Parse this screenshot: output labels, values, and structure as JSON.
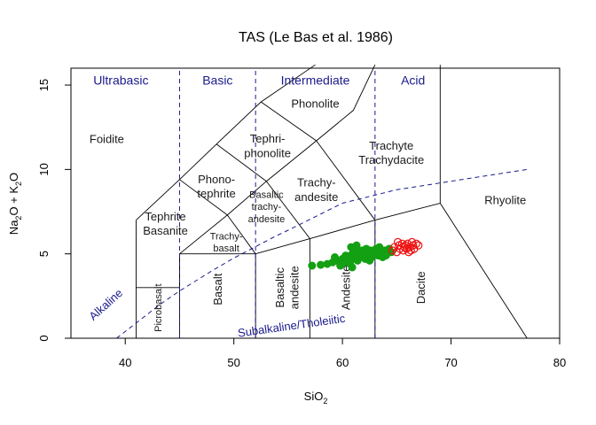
{
  "chart_data": {
    "type": "scatter",
    "title": "TAS (Le Bas et al. 1986)",
    "xlabel": "SiO",
    "xlabel_sub": "2",
    "ylabel": {
      "a": "Na",
      "a_sub": "2",
      "a_tail": "O + K",
      "b_sub": "2",
      "b_tail": "O"
    },
    "xlim": [
      35,
      80
    ],
    "ylim": [
      0,
      16
    ],
    "x_ticks": [
      40,
      50,
      60,
      70,
      80
    ],
    "y_ticks": [
      0,
      5,
      10,
      15
    ],
    "grid": false,
    "fields": [
      {
        "name": "Picrobasalt",
        "x": 43,
        "y": 1.8,
        "rotate": true
      },
      {
        "name": "Basalt",
        "x": 48.5,
        "y": 2.9,
        "rotate": true
      },
      {
        "name": "Basaltic andesite",
        "lines": [
          "Basaltic",
          "andesite"
        ],
        "x": 54.9,
        "y": 3.0,
        "rotate": true
      },
      {
        "name": "Andesite",
        "x": 60.3,
        "y": 3.0,
        "rotate": true
      },
      {
        "name": "Dacite",
        "x": 67.2,
        "y": 3.0,
        "rotate": true
      },
      {
        "name": "Rhyolite",
        "x": 75,
        "y": 8.2
      },
      {
        "name": "Foidite",
        "x": 38.3,
        "y": 11.8
      },
      {
        "name": "Tephrite Basanite",
        "lines": [
          "Tephrite",
          "Basanite"
        ],
        "x": 43.7,
        "y": 6.8
      },
      {
        "name": "Phono-tephrite",
        "lines": [
          "Phono-",
          "tephrite"
        ],
        "x": 48.4,
        "y": 9.0
      },
      {
        "name": "Tephri-phonolite",
        "lines": [
          "Tephri-",
          "phonolite"
        ],
        "x": 53.1,
        "y": 11.4
      },
      {
        "name": "Phonolite",
        "x": 57.5,
        "y": 13.9
      },
      {
        "name": "Trachy-basalt",
        "lines": [
          "Trachy-",
          "basalt"
        ],
        "x": 49.3,
        "y": 5.7,
        "small": true
      },
      {
        "name": "Basaltic trachy-andesite",
        "lines": [
          "Basaltic",
          "trachy-",
          "andesite"
        ],
        "x": 53.0,
        "y": 7.8,
        "small": true
      },
      {
        "name": "Trachy-andesite",
        "lines": [
          "Trachy-",
          "andesite"
        ],
        "x": 57.6,
        "y": 8.8
      },
      {
        "name": "Trachyte Trachydacite",
        "lines": [
          "Trachyte",
          "Trachydacite"
        ],
        "x": 64.5,
        "y": 11.0
      }
    ],
    "groups": [
      {
        "name": "Ultrabasic",
        "x": 39.6,
        "y": 15.3
      },
      {
        "name": "Basic",
        "x": 48.5,
        "y": 15.3
      },
      {
        "name": "Intermediate",
        "x": 57.5,
        "y": 15.3
      },
      {
        "name": "Acid",
        "x": 66.5,
        "y": 15.3
      }
    ],
    "series_labels": [
      {
        "name": "Alkaline",
        "x": 38.2,
        "y": 2.0,
        "angle": -42
      },
      {
        "name": "Subalkaline/Tholeiitic",
        "x": 55.3,
        "y": 0.75,
        "angle": -8
      }
    ],
    "series": [
      {
        "marker": "filled-circle",
        "color": "#13a013",
        "x": [
          57.2,
          58.0,
          58.6,
          59.1,
          59.5,
          59.8,
          60.0,
          60.2,
          60.3,
          60.5,
          60.6,
          60.7,
          60.9,
          61.0,
          61.1,
          61.2,
          61.4,
          61.5,
          61.6,
          61.8,
          61.9,
          62.0,
          62.1,
          62.3,
          62.4,
          62.6,
          62.7,
          62.9,
          63.1,
          63.3,
          63.5,
          63.7,
          63.9,
          64.1,
          64.3,
          64.5,
          60.8,
          61.3,
          62.2,
          63.0,
          59.3,
          60.9,
          62.5,
          63.4,
          64.0
        ],
        "y": [
          4.3,
          4.35,
          4.4,
          4.5,
          4.6,
          4.3,
          4.7,
          4.5,
          4.9,
          4.6,
          4.8,
          4.4,
          5.0,
          4.7,
          5.3,
          4.9,
          4.6,
          5.1,
          4.8,
          5.2,
          4.9,
          5.0,
          4.7,
          5.1,
          4.9,
          5.2,
          4.8,
          5.0,
          5.3,
          4.9,
          5.1,
          4.8,
          5.2,
          5.0,
          5.3,
          5.1,
          5.4,
          5.5,
          5.3,
          5.0,
          4.8,
          4.2,
          4.6,
          5.4,
          4.9
        ]
      },
      {
        "marker": "open-circle",
        "color": "#ee1111",
        "x": [
          64.6,
          64.8,
          65.0,
          65.2,
          65.3,
          65.5,
          65.6,
          65.8,
          65.9,
          66.0,
          66.2,
          66.3,
          66.5,
          66.6,
          66.8,
          67.0,
          65.1,
          65.7,
          66.1,
          66.4
        ],
        "y": [
          5.2,
          5.4,
          5.1,
          5.5,
          5.3,
          5.6,
          5.2,
          5.5,
          5.3,
          5.6,
          5.4,
          5.2,
          5.5,
          5.3,
          5.6,
          5.5,
          5.7,
          5.4,
          5.1,
          5.7
        ]
      }
    ]
  }
}
